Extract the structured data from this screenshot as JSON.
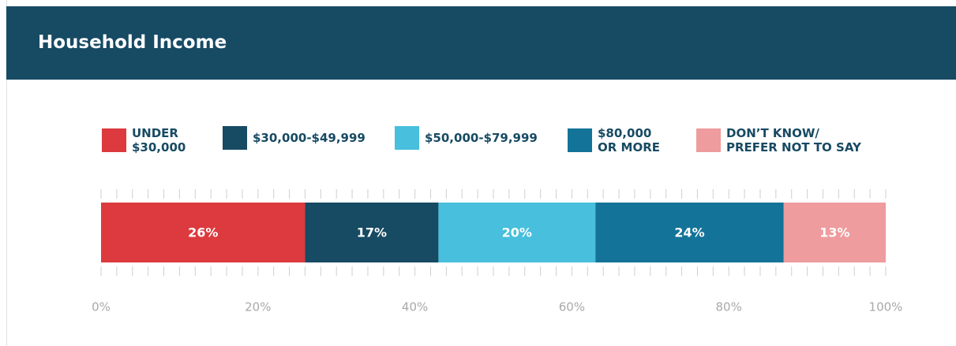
{
  "chart_data": {
    "type": "stacked_bar_horizontal",
    "title": "Household Income",
    "categories": [
      null
    ],
    "series": [
      {
        "name": "UNDER\n$30,000",
        "color": "#dc3a3e",
        "values": [
          26
        ],
        "value_labels": [
          "26%"
        ]
      },
      {
        "name": "$30,000-$49,999",
        "color": "#174a63",
        "values": [
          17
        ],
        "value_labels": [
          "17%"
        ]
      },
      {
        "name": "$50,000-$79,999",
        "color": "#47bfdd",
        "values": [
          20
        ],
        "value_labels": [
          "20%"
        ]
      },
      {
        "name": "$80,000\nOR MORE",
        "color": "#147399",
        "values": [
          24
        ],
        "value_labels": [
          "24%"
        ]
      },
      {
        "name": "DON’T KNOW/\nPREFER NOT TO SAY",
        "color": "#ee9c9e",
        "values": [
          13
        ],
        "value_labels": [
          "13%"
        ]
      }
    ],
    "xlim": [
      0,
      100
    ],
    "xticks": [
      {
        "value": 0,
        "label": "0%"
      },
      {
        "value": 20,
        "label": "20%"
      },
      {
        "value": 40,
        "label": "40%"
      },
      {
        "value": 60,
        "label": "60%"
      },
      {
        "value": 80,
        "label": "80%"
      },
      {
        "value": 100,
        "label": "100%"
      }
    ],
    "minor_xticks": [
      0,
      2,
      4,
      6,
      8,
      10,
      12,
      14,
      16,
      18,
      20,
      22,
      24,
      26,
      28,
      30,
      32,
      34,
      36,
      38,
      40,
      42,
      44,
      46,
      48,
      50,
      52,
      54,
      56,
      58,
      60,
      62,
      64,
      66,
      68,
      70,
      72,
      74,
      76,
      78,
      80,
      82,
      84,
      86,
      88,
      90,
      92,
      94,
      96,
      98,
      100
    ]
  }
}
